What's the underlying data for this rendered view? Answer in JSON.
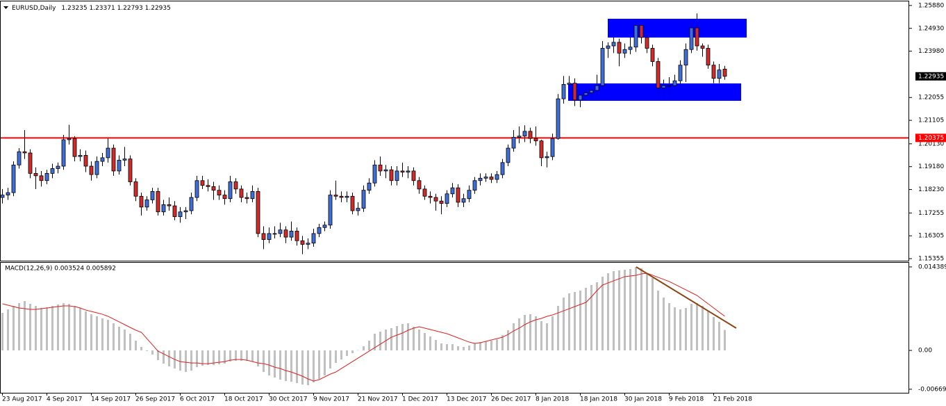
{
  "chart_data": [
    {
      "type": "candlestick",
      "title": "EURUSD,Daily",
      "quote": "1.23235 1.23371 1.22793 1.22935",
      "categories": [
        "23 Aug 2017",
        null,
        null,
        null,
        null,
        null,
        null,
        null,
        "4 Sep 2017",
        null,
        null,
        null,
        null,
        null,
        null,
        null,
        "14 Sep 2017",
        null,
        null,
        null,
        null,
        null,
        null,
        null,
        "26 Sep 2017",
        null,
        null,
        null,
        null,
        null,
        null,
        null,
        "6 Oct 2017",
        null,
        null,
        null,
        null,
        null,
        null,
        null,
        "18 Oct 2017",
        null,
        null,
        null,
        null,
        null,
        null,
        null,
        "30 Oct 2017",
        null,
        null,
        null,
        null,
        null,
        null,
        null,
        "9 Nov 2017",
        null,
        null,
        null,
        null,
        null,
        null,
        null,
        "21 Nov 2017",
        null,
        null,
        null,
        null,
        null,
        null,
        null,
        "1 Dec 2017",
        null,
        null,
        null,
        null,
        null,
        null,
        null,
        "13 Dec 2017",
        null,
        null,
        null,
        null,
        null,
        null,
        null,
        "26 Dec 2017",
        null,
        null,
        null,
        null,
        null,
        null,
        null,
        "8 Jan 2018",
        null,
        null,
        null,
        null,
        null,
        null,
        null,
        "18 Jan 2018",
        null,
        null,
        null,
        null,
        null,
        null,
        null,
        "30 Jan 2018",
        null,
        null,
        null,
        null,
        null,
        null,
        null,
        "9 Feb 2018",
        null,
        null,
        null,
        null,
        null,
        null,
        null,
        "21 Feb 2018",
        null,
        null
      ],
      "open": [
        1.179,
        1.18,
        1.181,
        1.1925,
        1.198,
        1.1975,
        1.189,
        1.188,
        1.186,
        1.189,
        1.191,
        1.192,
        1.203,
        1.2035,
        1.196,
        1.1965,
        1.192,
        1.1885,
        1.194,
        1.1955,
        1.1995,
        1.19,
        1.1945,
        1.195,
        1.1855,
        1.1795,
        1.175,
        1.178,
        1.1815,
        1.173,
        1.176,
        1.1755,
        1.171,
        1.173,
        1.1735,
        1.179,
        1.186,
        1.184,
        1.1835,
        1.182,
        1.18,
        1.1785,
        1.1855,
        1.1825,
        1.179,
        1.1785,
        1.1815,
        1.164,
        1.1615,
        1.164,
        1.164,
        1.1655,
        1.1625,
        1.165,
        1.161,
        1.1595,
        1.16,
        1.164,
        1.1665,
        1.1675,
        1.18,
        1.1795,
        1.179,
        1.1795,
        1.1735,
        1.1745,
        1.182,
        1.185,
        1.1925,
        1.19,
        1.1905,
        1.186,
        1.19,
        1.1895,
        1.19,
        1.186,
        1.1825,
        1.1795,
        1.179,
        1.1775,
        1.1765,
        1.1805,
        1.183,
        1.177,
        1.1785,
        1.182,
        1.186,
        1.187,
        1.1875,
        1.1865,
        1.1885,
        1.1935,
        1.1995,
        1.204,
        1.2045,
        1.2065,
        1.2035,
        1.2025,
        1.1955,
        1.196,
        1.2035,
        1.22,
        1.226,
        1.2265,
        1.2195,
        1.2215,
        1.2225,
        1.2235,
        1.2255,
        1.241,
        1.242,
        1.2435,
        1.239,
        1.2405,
        1.2415,
        1.2505,
        1.2455,
        1.241,
        1.2355,
        1.2245,
        1.2255,
        1.2255,
        1.2275,
        1.234,
        1.2405,
        1.2495,
        1.242,
        1.241,
        1.234,
        1.2285,
        1.23235
      ],
      "high": [
        1.1825,
        1.183,
        1.194,
        1.1995,
        1.207,
        1.199,
        1.1915,
        1.19,
        1.1905,
        1.193,
        1.1935,
        1.205,
        1.2092,
        1.2045,
        1.199,
        1.1985,
        1.194,
        1.196,
        1.1975,
        1.2035,
        1.201,
        1.1965,
        1.2,
        1.1965,
        1.187,
        1.181,
        1.1795,
        1.183,
        1.183,
        1.178,
        1.179,
        1.1775,
        1.175,
        1.175,
        1.181,
        1.188,
        1.188,
        1.1865,
        1.1855,
        1.184,
        1.182,
        1.188,
        1.187,
        1.184,
        1.181,
        1.184,
        1.183,
        1.167,
        1.1665,
        1.167,
        1.1685,
        1.167,
        1.169,
        1.1665,
        1.163,
        1.162,
        1.166,
        1.168,
        1.169,
        1.182,
        1.186,
        1.1815,
        1.1815,
        1.181,
        1.177,
        1.184,
        1.187,
        1.1945,
        1.196,
        1.1925,
        1.192,
        1.192,
        1.1935,
        1.192,
        1.1915,
        1.1875,
        1.184,
        1.1815,
        1.1805,
        1.1795,
        1.182,
        1.185,
        1.1845,
        1.1805,
        1.184,
        1.1875,
        1.189,
        1.189,
        1.189,
        1.19,
        1.195,
        1.201,
        1.207,
        1.2085,
        1.209,
        1.208,
        1.2085,
        1.203,
        1.198,
        1.2055,
        1.222,
        1.2295,
        1.2295,
        1.2285,
        1.2235,
        1.2245,
        1.226,
        1.23,
        1.244,
        1.2435,
        1.2475,
        1.245,
        1.243,
        1.2455,
        1.252,
        1.2515,
        1.247,
        1.2425,
        1.237,
        1.228,
        1.229,
        1.23,
        1.236,
        1.243,
        1.2515,
        1.2555,
        1.243,
        1.2425,
        1.2355,
        1.2345,
        1.23371
      ],
      "low": [
        1.1765,
        1.178,
        1.1795,
        1.191,
        1.195,
        1.187,
        1.1825,
        1.1835,
        1.1845,
        1.187,
        1.189,
        1.1905,
        1.201,
        1.194,
        1.194,
        1.1895,
        1.186,
        1.187,
        1.192,
        1.1935,
        1.188,
        1.1885,
        1.192,
        1.184,
        1.1775,
        1.1715,
        1.1735,
        1.1765,
        1.1715,
        1.1715,
        1.1735,
        1.1695,
        1.1685,
        1.17,
        1.172,
        1.1775,
        1.1825,
        1.1815,
        1.178,
        1.178,
        1.176,
        1.177,
        1.1805,
        1.177,
        1.1765,
        1.177,
        1.1625,
        1.1575,
        1.16,
        1.162,
        1.1625,
        1.16,
        1.161,
        1.159,
        1.1554,
        1.1575,
        1.1585,
        1.1625,
        1.165,
        1.166,
        1.178,
        1.177,
        1.177,
        1.172,
        1.1715,
        1.173,
        1.1805,
        1.1835,
        1.188,
        1.187,
        1.184,
        1.184,
        1.1875,
        1.187,
        1.184,
        1.1805,
        1.178,
        1.1765,
        1.1735,
        1.172,
        1.175,
        1.179,
        1.175,
        1.175,
        1.177,
        1.1805,
        1.184,
        1.1855,
        1.185,
        1.185,
        1.187,
        1.192,
        1.198,
        1.2015,
        1.202,
        1.2015,
        1.2005,
        1.192,
        1.1915,
        1.1945,
        1.203,
        1.218,
        1.22,
        1.217,
        1.2165,
        1.2195,
        1.2205,
        1.2215,
        1.224,
        1.237,
        1.239,
        1.2335,
        1.237,
        1.2385,
        1.2395,
        1.243,
        1.239,
        1.2335,
        1.2205,
        1.2205,
        1.2205,
        1.2235,
        1.226,
        1.227,
        1.239,
        1.24,
        1.2375,
        1.2325,
        1.2265,
        1.2265,
        1.22793
      ],
      "close": [
        1.18,
        1.181,
        1.1925,
        1.198,
        1.1975,
        1.189,
        1.188,
        1.186,
        1.189,
        1.191,
        1.192,
        1.203,
        1.2035,
        1.196,
        1.1965,
        1.192,
        1.1885,
        1.194,
        1.1955,
        1.1995,
        1.19,
        1.1945,
        1.195,
        1.1855,
        1.1795,
        1.175,
        1.178,
        1.1815,
        1.173,
        1.176,
        1.1755,
        1.171,
        1.173,
        1.1735,
        1.179,
        1.186,
        1.184,
        1.1835,
        1.182,
        1.18,
        1.1785,
        1.1855,
        1.1825,
        1.179,
        1.1785,
        1.1815,
        1.164,
        1.1615,
        1.164,
        1.164,
        1.1655,
        1.1625,
        1.165,
        1.161,
        1.1595,
        1.16,
        1.164,
        1.1665,
        1.1675,
        1.18,
        1.1795,
        1.179,
        1.1795,
        1.1735,
        1.1745,
        1.182,
        1.185,
        1.1925,
        1.19,
        1.1905,
        1.186,
        1.19,
        1.1895,
        1.19,
        1.186,
        1.1825,
        1.1795,
        1.179,
        1.1775,
        1.1765,
        1.1805,
        1.183,
        1.177,
        1.1785,
        1.182,
        1.186,
        1.187,
        1.1875,
        1.1865,
        1.1885,
        1.1935,
        1.1995,
        1.204,
        1.2045,
        1.2065,
        1.2035,
        1.2025,
        1.1955,
        1.196,
        1.2035,
        1.22,
        1.226,
        1.2265,
        1.2195,
        1.2215,
        1.2225,
        1.2235,
        1.2255,
        1.241,
        1.242,
        1.2435,
        1.239,
        1.2405,
        1.2415,
        1.2505,
        1.2455,
        1.241,
        1.2355,
        1.2245,
        1.2255,
        1.2255,
        1.2275,
        1.234,
        1.2405,
        1.2495,
        1.242,
        1.241,
        1.234,
        1.2285,
        1.232,
        1.22935
      ],
      "up_color": "#3f6fd6",
      "down_color": "#d12a2a",
      "hline": 1.20375,
      "hline_color": "#ff0000",
      "last_price": 1.22935,
      "ylim": [
        1.1527,
        1.2605
      ],
      "yticks": [
        {
          "value": 1.2588,
          "label": "1.25880"
        },
        {
          "value": 1.2493,
          "label": "1.24930"
        },
        {
          "value": 1.2398,
          "label": "1.23980"
        },
        1.22055,
        1.21105,
        {
          "value": 1.2013,
          "label": "1.20130"
        },
        {
          "value": 1.1918,
          "label": "1.19180"
        },
        {
          "value": 1.1823,
          "label": "1.18230"
        },
        1.17255,
        1.16305,
        1.15355
      ]
    },
    {
      "type": "macd",
      "title": "MACD(12,26,9) 0.003524 0.005892",
      "macd": [
        0.00647,
        0.00707,
        0.00767,
        0.00815,
        0.00851,
        0.00803,
        0.00767,
        0.00731,
        0.00743,
        0.00767,
        0.00791,
        0.00815,
        0.00803,
        0.00767,
        0.00731,
        0.00671,
        0.00623,
        0.00588,
        0.00552,
        0.00528,
        0.00468,
        0.00408,
        0.0036,
        0.00288,
        0.00168,
        0.0006,
        -0.00012,
        -0.00072,
        -0.00168,
        -0.00228,
        -0.00276,
        -0.00312,
        -0.00348,
        -0.00372,
        -0.00348,
        -0.00288,
        -0.00264,
        -0.00252,
        -0.00252,
        -0.0024,
        -0.00228,
        -0.00192,
        -0.0018,
        -0.0018,
        -0.0018,
        -0.00192,
        -0.00276,
        -0.00372,
        -0.00432,
        -0.00468,
        -0.00504,
        -0.00528,
        -0.0054,
        -0.00564,
        -0.00588,
        -0.006,
        -0.00552,
        -0.00492,
        -0.00432,
        -0.00312,
        -0.00216,
        -0.00156,
        -0.00096,
        -0.00048,
        5e-05,
        0.00072,
        0.00168,
        0.00288,
        0.00324,
        0.0036,
        0.00384,
        0.0042,
        0.00456,
        0.00468,
        0.00408,
        0.0036,
        0.003,
        0.0024,
        0.0018,
        0.0012,
        0.00108,
        0.00108,
        0.00072,
        0.0006,
        0.00084,
        0.0012,
        0.00144,
        0.00156,
        0.00168,
        0.00192,
        0.00264,
        0.00348,
        0.00468,
        0.00552,
        0.00612,
        0.00624,
        0.00588,
        0.00504,
        0.00468,
        0.00588,
        0.00767,
        0.00911,
        0.00983,
        0.01007,
        0.01031,
        0.01079,
        0.01127,
        0.01175,
        0.01271,
        0.01331,
        0.01367,
        0.01379,
        0.01391,
        0.01403,
        0.01439,
        0.01415,
        0.01331,
        0.01247,
        0.01031,
        0.00911,
        0.00815,
        0.00743,
        0.00707,
        0.00731,
        0.00803,
        0.00815,
        0.00767,
        0.00683,
        0.00575,
        0.00492,
        0.003524
      ],
      "signal": [
        0.00803,
        0.00779,
        0.00755,
        0.00731,
        0.00719,
        0.00707,
        0.00707,
        0.00719,
        0.00731,
        0.00743,
        0.00755,
        0.00767,
        0.00767,
        0.00755,
        0.00731,
        0.00695,
        0.00671,
        0.00647,
        0.00623,
        0.00588,
        0.0054,
        0.00492,
        0.00444,
        0.00396,
        0.00348,
        0.00312,
        0.00204,
        0.00096,
        -0.00012,
        -0.0006,
        -0.00108,
        -0.00156,
        -0.00192,
        -0.00204,
        -0.00216,
        -0.00216,
        -0.00228,
        -0.00228,
        -0.00216,
        -0.00204,
        -0.00192,
        -0.00168,
        -0.00156,
        -0.00156,
        -0.00168,
        -0.00192,
        -0.00216,
        -0.00228,
        -0.00252,
        -0.00288,
        -0.00312,
        -0.00348,
        -0.00372,
        -0.00408,
        -0.00444,
        -0.00492,
        -0.00528,
        -0.00504,
        -0.00456,
        -0.00408,
        -0.00372,
        -0.00312,
        -0.00252,
        -0.00192,
        -0.00132,
        -0.00072,
        -0.00012,
        0.00048,
        0.00108,
        0.00168,
        0.00228,
        0.00264,
        0.003,
        0.00348,
        0.00384,
        0.00408,
        0.00384,
        0.0036,
        0.00336,
        0.00312,
        0.00288,
        0.00252,
        0.00216,
        0.0018,
        0.00144,
        0.0012,
        0.00132,
        0.00156,
        0.0018,
        0.00204,
        0.00228,
        0.00276,
        0.00336,
        0.00384,
        0.00444,
        0.00492,
        0.00528,
        0.00552,
        0.00588,
        0.00612,
        0.00647,
        0.00683,
        0.00719,
        0.00755,
        0.00791,
        0.00827,
        0.00923,
        0.01031,
        0.01127,
        0.01163,
        0.01199,
        0.01235,
        0.01271,
        0.01283,
        0.01295,
        0.01319,
        0.01331,
        0.01295,
        0.01259,
        0.01223,
        0.01187,
        0.01139,
        0.01091,
        0.01043,
        0.00995,
        0.00947,
        0.00875,
        0.00803,
        0.00731,
        0.00659,
        0.005892
      ],
      "macd_color": "#c0c0c0",
      "signal_color": "#e02020",
      "ylim": [
        -0.0073,
        0.0151
      ],
      "yticks": [
        0.014389,
        {
          "value": 0,
          "label": "0.00"
        },
        -0.00669
      ]
    }
  ]
}
